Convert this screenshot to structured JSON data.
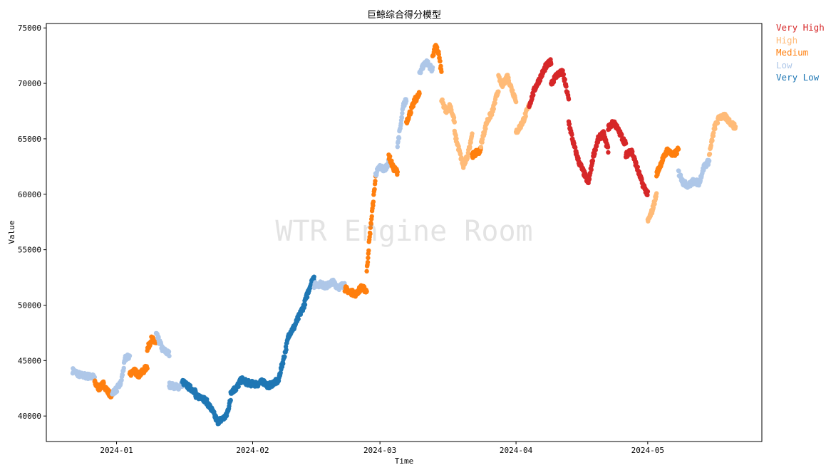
{
  "chart_data": {
    "type": "scatter",
    "title": "巨鲸综合得分模型",
    "xlabel": "Time",
    "ylabel": "Value",
    "watermark": "WTR Engine Room",
    "x_range": [
      "2023-12-16",
      "2024-05-27"
    ],
    "ylim": [
      37700,
      75400
    ],
    "yticks": [
      40000,
      45000,
      50000,
      55000,
      60000,
      65000,
      70000,
      75000
    ],
    "xticks": [
      {
        "date": "2024-01-01",
        "label": "2024-01"
      },
      {
        "date": "2024-02-01",
        "label": "2024-02"
      },
      {
        "date": "2024-03-01",
        "label": "2024-03"
      },
      {
        "date": "2024-04-01",
        "label": "2024-04"
      },
      {
        "date": "2024-05-01",
        "label": "2024-05"
      }
    ],
    "grid": false,
    "legend_position": "outside-top-right",
    "categories": [
      {
        "name": "Very High",
        "color": "#d62728"
      },
      {
        "name": "High",
        "color": "#ffbb78"
      },
      {
        "name": "Medium",
        "color": "#ff7f0e"
      },
      {
        "name": "Low",
        "color": "#aec7e8"
      },
      {
        "name": "Very Low",
        "color": "#1f77b4"
      }
    ],
    "segments": [
      {
        "start": "2023-12-22",
        "end": "2023-12-27",
        "values": [
          44100,
          43700,
          43600,
          43500
        ],
        "level": "Low"
      },
      {
        "start": "2023-12-27",
        "end": "2023-12-31",
        "values": [
          43000,
          42500,
          42900,
          42200,
          41800
        ],
        "level": "Medium"
      },
      {
        "start": "2023-12-31",
        "end": "2024-01-04",
        "values": [
          42100,
          42400,
          43000,
          45200,
          45400
        ],
        "level": "Low"
      },
      {
        "start": "2024-01-04",
        "end": "2024-01-08",
        "values": [
          43800,
          44100,
          43700,
          44000,
          44500
        ],
        "level": "Medium"
      },
      {
        "start": "2024-01-08",
        "end": "2024-01-10",
        "values": [
          46000,
          47000,
          46500
        ],
        "level": "Medium"
      },
      {
        "start": "2024-01-10",
        "end": "2024-01-13",
        "values": [
          47400,
          46000,
          45600
        ],
        "level": "Low"
      },
      {
        "start": "2024-01-13",
        "end": "2024-01-16",
        "values": [
          42800,
          42700,
          42600,
          42900
        ],
        "level": "Low"
      },
      {
        "start": "2024-01-16",
        "end": "2024-01-19",
        "values": [
          43100,
          42600,
          42200
        ],
        "level": "Very Low"
      },
      {
        "start": "2024-01-19",
        "end": "2024-01-24",
        "values": [
          41700,
          41800,
          41300,
          40500,
          39500
        ],
        "level": "Very Low"
      },
      {
        "start": "2024-01-24",
        "end": "2024-01-27",
        "values": [
          39500,
          39700,
          40000,
          41500
        ],
        "level": "Very Low"
      },
      {
        "start": "2024-01-27",
        "end": "2024-02-01",
        "values": [
          42200,
          42500,
          43300,
          43000,
          42900
        ],
        "level": "Very Low"
      },
      {
        "start": "2024-02-01",
        "end": "2024-02-07",
        "values": [
          42900,
          42900,
          43100,
          42700,
          43000,
          43200
        ],
        "level": "Very Low"
      },
      {
        "start": "2024-02-07",
        "end": "2024-02-15",
        "values": [
          43500,
          45300,
          47400,
          48000,
          49000,
          50000,
          51500,
          52600
        ],
        "level": "Very Low"
      },
      {
        "start": "2024-02-15",
        "end": "2024-02-22",
        "values": [
          51800,
          51900,
          51700,
          52100,
          51600,
          51900
        ],
        "level": "Low"
      },
      {
        "start": "2024-02-22",
        "end": "2024-02-27",
        "values": [
          51500,
          51200,
          51000,
          51600,
          51300
        ],
        "level": "Medium"
      },
      {
        "start": "2024-02-27",
        "end": "2024-02-29",
        "values": [
          53000,
          55500,
          57500,
          59500,
          61500
        ],
        "level": "Medium"
      },
      {
        "start": "2024-02-29",
        "end": "2024-03-03",
        "values": [
          61800,
          62500,
          62200,
          62900
        ],
        "level": "Low"
      },
      {
        "start": "2024-03-03",
        "end": "2024-03-05",
        "values": [
          63500,
          62400,
          62000
        ],
        "level": "Medium"
      },
      {
        "start": "2024-03-05",
        "end": "2024-03-07",
        "values": [
          64500,
          66000,
          68000,
          68500
        ],
        "level": "Low"
      },
      {
        "start": "2024-03-07",
        "end": "2024-03-10",
        "values": [
          66500,
          67500,
          68500,
          69000
        ],
        "level": "Medium"
      },
      {
        "start": "2024-03-10",
        "end": "2024-03-13",
        "values": [
          71000,
          72000,
          71200
        ],
        "level": "Low"
      },
      {
        "start": "2024-03-13",
        "end": "2024-03-15",
        "values": [
          72500,
          73300,
          72800,
          71000
        ],
        "level": "Medium"
      },
      {
        "start": "2024-03-15",
        "end": "2024-03-18",
        "values": [
          68500,
          67500,
          68000,
          66500
        ],
        "level": "High"
      },
      {
        "start": "2024-03-18",
        "end": "2024-03-22",
        "values": [
          65500,
          64000,
          62500,
          63500,
          65500
        ],
        "level": "High"
      },
      {
        "start": "2024-03-22",
        "end": "2024-03-24",
        "values": [
          63500,
          64000
        ],
        "level": "Medium"
      },
      {
        "start": "2024-03-24",
        "end": "2024-03-28",
        "values": [
          64500,
          66500,
          67500,
          69500
        ],
        "level": "High"
      },
      {
        "start": "2024-03-28",
        "end": "2024-04-01",
        "values": [
          70500,
          69800,
          70700,
          69500,
          68500
        ],
        "level": "High"
      },
      {
        "start": "2024-04-01",
        "end": "2024-04-04",
        "values": [
          65500,
          66500,
          68000
        ],
        "level": "High"
      },
      {
        "start": "2024-04-04",
        "end": "2024-04-09",
        "values": [
          68000,
          69500,
          70500,
          71500,
          72000
        ],
        "level": "Very High"
      },
      {
        "start": "2024-04-09",
        "end": "2024-04-13",
        "values": [
          70000,
          70800,
          71000,
          68500
        ],
        "level": "Very High"
      },
      {
        "start": "2024-04-13",
        "end": "2024-04-22",
        "values": [
          66500,
          64500,
          63000,
          62000,
          61000,
          63500,
          65000,
          65500,
          64000
        ],
        "level": "Very High"
      },
      {
        "start": "2024-04-22",
        "end": "2024-04-26",
        "values": [
          66000,
          66500,
          65500,
          64500
        ],
        "level": "Very High"
      },
      {
        "start": "2024-04-26",
        "end": "2024-05-01",
        "values": [
          63500,
          64000,
          62500,
          61000,
          60000
        ],
        "level": "Very High"
      },
      {
        "start": "2024-05-01",
        "end": "2024-05-03",
        "values": [
          57500,
          58500,
          60000
        ],
        "level": "High"
      },
      {
        "start": "2024-05-03",
        "end": "2024-05-08",
        "values": [
          61800,
          63000,
          64000,
          63500,
          64000
        ],
        "level": "Medium"
      },
      {
        "start": "2024-05-08",
        "end": "2024-05-15",
        "values": [
          62000,
          61000,
          60800,
          61200,
          61000,
          62500,
          63000
        ],
        "level": "Low"
      },
      {
        "start": "2024-05-15",
        "end": "2024-05-21",
        "values": [
          63500,
          66000,
          67000,
          67000,
          66500,
          66000
        ],
        "level": "High"
      }
    ]
  }
}
